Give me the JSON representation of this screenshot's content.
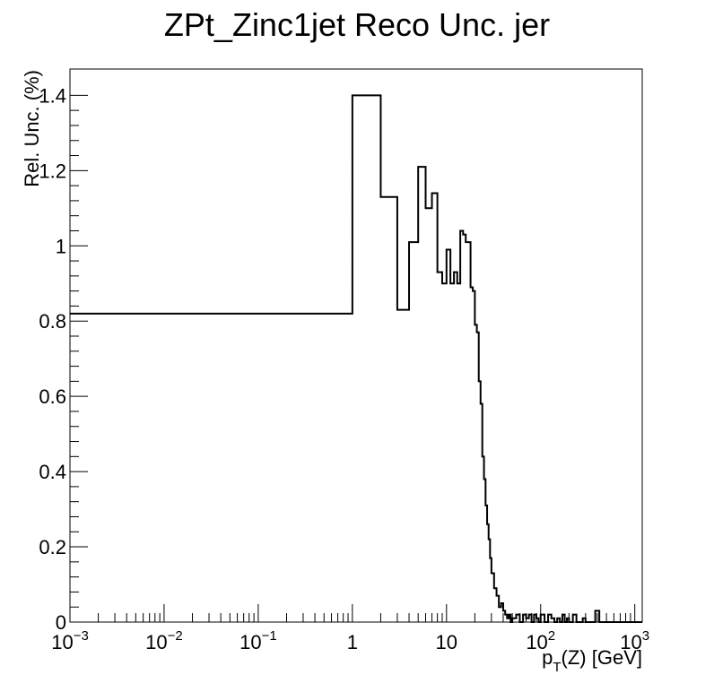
{
  "chart_data": {
    "type": "histogram",
    "title": "ZPt_Zinc1jet Reco Unc. jer",
    "xlabel": {
      "base": "p",
      "sub": "T",
      "rest": "(Z) [GeV]"
    },
    "ylabel": "Rel. Unc. (%)",
    "x_scale": "log",
    "xlim": [
      0.001,
      1200
    ],
    "ylim": [
      0,
      1.47
    ],
    "grid": false,
    "legend": "none",
    "line_color": "#000000",
    "x_ticks": [
      {
        "value": 0.001,
        "base": "10",
        "exp": "−3"
      },
      {
        "value": 0.01,
        "base": "10",
        "exp": "−2"
      },
      {
        "value": 0.1,
        "base": "10",
        "exp": "−1"
      },
      {
        "value": 1,
        "base": "1",
        "exp": ""
      },
      {
        "value": 10,
        "base": "10",
        "exp": ""
      },
      {
        "value": 100,
        "base": "10",
        "exp": "2"
      },
      {
        "value": 1000,
        "base": "10",
        "exp": "3"
      }
    ],
    "y_ticks": [
      {
        "value": 0,
        "label": "0"
      },
      {
        "value": 0.2,
        "label": "0.2"
      },
      {
        "value": 0.4,
        "label": "0.4"
      },
      {
        "value": 0.6,
        "label": "0.6"
      },
      {
        "value": 0.8,
        "label": "0.8"
      },
      {
        "value": 1.0,
        "label": "1"
      },
      {
        "value": 1.2,
        "label": "1.2"
      },
      {
        "value": 1.4,
        "label": "1.4"
      }
    ],
    "bin_edges": [
      0.001,
      1,
      2,
      3,
      4,
      5,
      6,
      7,
      8,
      9,
      10,
      11,
      12,
      13,
      14,
      15,
      16,
      17,
      18,
      19,
      20,
      21,
      22,
      23,
      24,
      25,
      26,
      27,
      28,
      29,
      30,
      32,
      34,
      36,
      38,
      40,
      42,
      44,
      46,
      48,
      50,
      55,
      60,
      65,
      70,
      75,
      80,
      85,
      90,
      95,
      100,
      110,
      120,
      130,
      140,
      150,
      160,
      170,
      180,
      190,
      200,
      220,
      240,
      260,
      280,
      300,
      340,
      380,
      420,
      460,
      500,
      600,
      800,
      1000,
      1200
    ],
    "values": [
      0.82,
      1.4,
      1.13,
      0.83,
      1.01,
      1.21,
      1.1,
      1.14,
      0.93,
      0.9,
      0.99,
      0.9,
      0.93,
      0.9,
      1.04,
      1.03,
      1.01,
      1.01,
      0.89,
      0.88,
      0.79,
      0.77,
      0.64,
      0.58,
      0.44,
      0.38,
      0.31,
      0.26,
      0.22,
      0.17,
      0.13,
      0.09,
      0.07,
      0.04,
      0.05,
      0.03,
      0.02,
      0.01,
      0.02,
      0.0,
      0.01,
      0.02,
      0.0,
      0.02,
      0.01,
      0.02,
      0.0,
      0.02,
      0.01,
      0.0,
      0.02,
      0.0,
      0.02,
      0.01,
      0.0,
      0.01,
      0.0,
      0.02,
      0.0,
      0.01,
      0.0,
      0.02,
      0.0,
      0.0,
      0.01,
      0.0,
      0.0,
      0.03,
      0.0,
      0.0,
      0.0,
      0.0,
      0.0,
      0.0
    ]
  }
}
